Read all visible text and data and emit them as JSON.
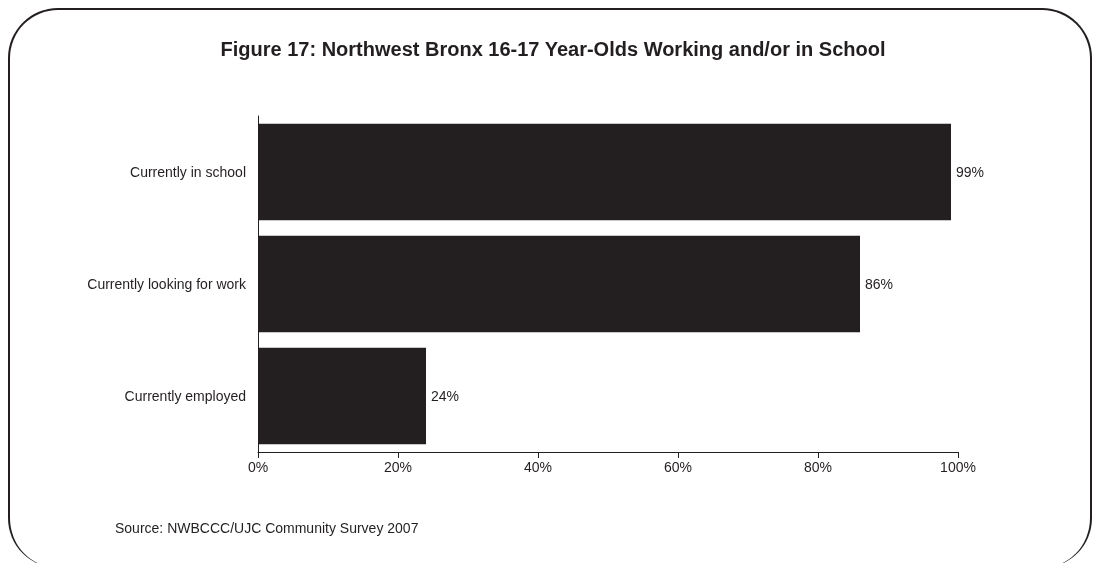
{
  "chart_data": {
    "type": "bar",
    "orientation": "horizontal",
    "title": "Figure 17: Northwest Bronx 16-17 Year-Olds Working and/or in School",
    "categories": [
      "Currently in school",
      "Currently looking for work",
      "Currently employed"
    ],
    "values": [
      99,
      86,
      24
    ],
    "color": "#231f20",
    "data_labels": true,
    "value_labels": [
      "99%",
      "86%",
      "24%"
    ],
    "xlim": [
      0,
      100
    ],
    "xticks": [
      {
        "value": 0,
        "label": "0%"
      },
      {
        "value": 20,
        "label": "20%"
      },
      {
        "value": 40,
        "label": "40%"
      },
      {
        "value": 60,
        "label": "60%"
      },
      {
        "value": 80,
        "label": "80%"
      },
      {
        "value": 100,
        "label": "100%"
      }
    ],
    "grid": false,
    "annotations": [
      "Source: NWBCCC/UJC Community Survey 2007"
    ]
  }
}
